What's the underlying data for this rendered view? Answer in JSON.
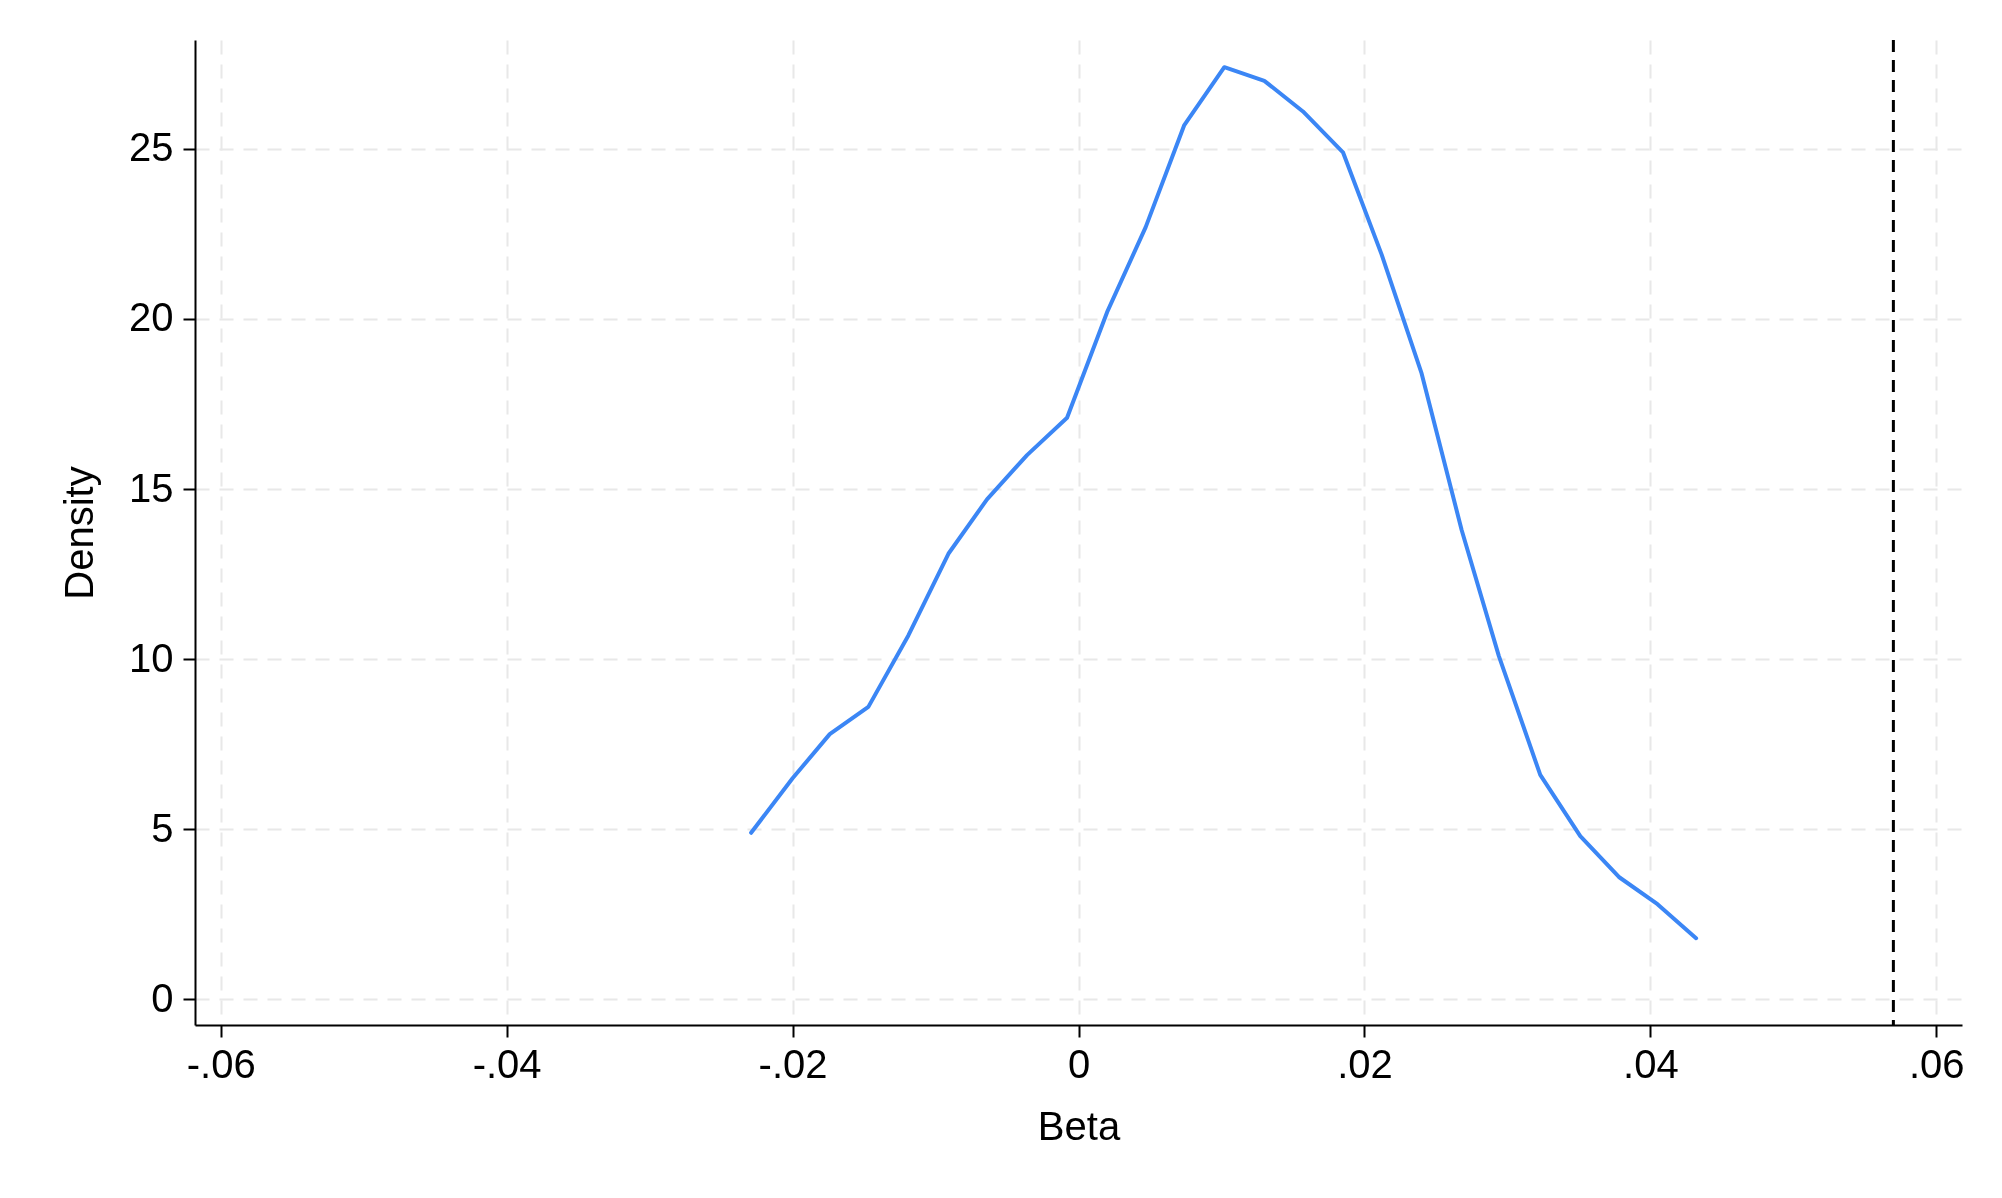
{
  "chart_data": {
    "type": "line",
    "xlabel": "Beta",
    "ylabel": "Density",
    "x": [
      -0.0229,
      -0.02,
      -0.0174,
      -0.0147,
      -0.0119,
      -0.0091,
      -0.0064,
      -0.0036,
      -0.0008,
      0.002,
      0.0047,
      0.0074,
      0.0102,
      0.013,
      0.0157,
      0.0185,
      0.0212,
      0.024,
      0.0268,
      0.0294,
      0.0323,
      0.0351,
      0.0378,
      0.0405,
      0.0432
    ],
    "series": [
      {
        "color": "#3b86f5",
        "values": [
          4.9,
          6.5,
          7.8,
          8.6,
          10.7,
          13.1,
          14.7,
          16.0,
          17.1,
          20.2,
          22.7,
          25.7,
          27.4,
          27.0,
          26.1,
          24.9,
          21.9,
          18.4,
          13.8,
          10.1,
          6.6,
          4.8,
          3.6,
          2.8,
          1.8
        ]
      }
    ],
    "xlim": [
      -0.0618,
      0.0618
    ],
    "ylim": [
      -0.75,
      28.2
    ],
    "xticks": [
      {
        "value": -0.06,
        "label": "-.06"
      },
      {
        "value": -0.04,
        "label": "-.04"
      },
      {
        "value": -0.02,
        "label": "-.02"
      },
      0,
      {
        "value": 0.02,
        "label": ".02"
      },
      {
        "value": 0.04,
        "label": ".04"
      },
      {
        "value": 0.06,
        "label": ".06"
      }
    ],
    "yticks": [
      0,
      5,
      10,
      15,
      20,
      25
    ],
    "ref_lines": [
      {
        "axis": "x",
        "value": 0.057,
        "color": "#000000",
        "line_style": "dashed"
      }
    ],
    "grid": true,
    "marker": "none",
    "line_style": "solid"
  }
}
